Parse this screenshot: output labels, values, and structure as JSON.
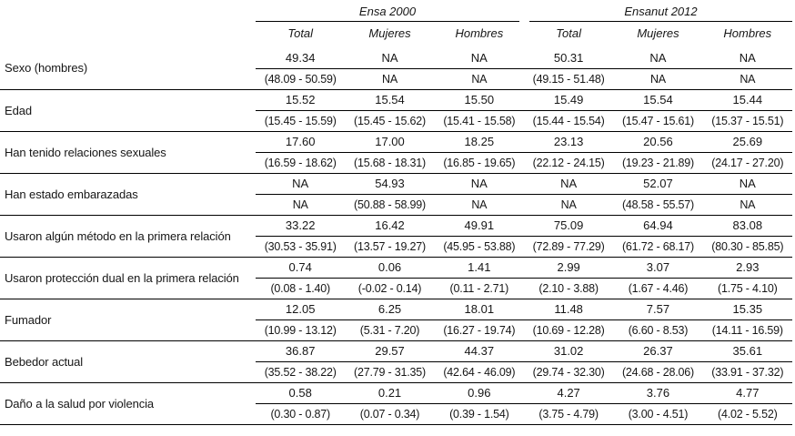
{
  "page": {
    "background_color": "#ffffff",
    "text_color": "#161616",
    "rule_color": "#000000"
  },
  "table": {
    "group_headers": [
      {
        "label": "Ensa 2000"
      },
      {
        "label": "Ensanut 2012"
      }
    ],
    "column_headers": [
      "Total",
      "Mujeres",
      "Hombres",
      "Total",
      "Mujeres",
      "Hombres"
    ],
    "rows": [
      {
        "label": "Sexo (hombres)",
        "values": [
          "49.34",
          "NA",
          "NA",
          "50.31",
          "NA",
          "NA"
        ],
        "ci": [
          "(48.09 - 50.59)",
          "NA",
          "NA",
          "(49.15 - 51.48)",
          "NA",
          "NA"
        ]
      },
      {
        "label": "Edad",
        "values": [
          "15.52",
          "15.54",
          "15.50",
          "15.49",
          "15.54",
          "15.44"
        ],
        "ci": [
          "(15.45 - 15.59)",
          "(15.45 - 15.62)",
          "(15.41 - 15.58)",
          "(15.44 - 15.54)",
          "(15.47 - 15.61)",
          "(15.37 - 15.51)"
        ]
      },
      {
        "label": "Han tenido relaciones sexuales",
        "values": [
          "17.60",
          "17.00",
          "18.25",
          "23.13",
          "20.56",
          "25.69"
        ],
        "ci": [
          "(16.59 - 18.62)",
          "(15.68 - 18.31)",
          "(16.85 - 19.65)",
          "(22.12 - 24.15)",
          "(19.23 - 21.89)",
          "(24.17 - 27.20)"
        ]
      },
      {
        "label": "Han estado embarazadas",
        "values": [
          "NA",
          "54.93",
          "NA",
          "NA",
          "52.07",
          "NA"
        ],
        "ci": [
          "NA",
          "(50.88 - 58.99)",
          "NA",
          "NA",
          "(48.58 - 55.57)",
          "NA"
        ]
      },
      {
        "label": "Usaron algún método en la primera relación",
        "values": [
          "33.22",
          "16.42",
          "49.91",
          "75.09",
          "64.94",
          "83.08"
        ],
        "ci": [
          "(30.53 - 35.91)",
          "(13.57 - 19.27)",
          "(45.95 - 53.88)",
          "(72.89 - 77.29)",
          "(61.72 - 68.17)",
          "(80.30 - 85.85)"
        ]
      },
      {
        "label": "Usaron protección dual en la primera relación",
        "values": [
          "0.74",
          "0.06",
          "1.41",
          "2.99",
          "3.07",
          "2.93"
        ],
        "ci": [
          "(0.08 - 1.40)",
          "(-0.02 - 0.14)",
          "(0.11 - 2.71)",
          "(2.10 - 3.88)",
          "(1.67 - 4.46)",
          "(1.75 - 4.10)"
        ]
      },
      {
        "label": "Fumador",
        "values": [
          "12.05",
          "6.25",
          "18.01",
          "11.48",
          "7.57",
          "15.35"
        ],
        "ci": [
          "(10.99 - 13.12)",
          "(5.31 - 7.20)",
          "(16.27 - 19.74)",
          "(10.69 - 12.28)",
          "(6.60 - 8.53)",
          "(14.11 - 16.59)"
        ]
      },
      {
        "label": "Bebedor actual",
        "values": [
          "36.87",
          "29.57",
          "44.37",
          "31.02",
          "26.37",
          "35.61"
        ],
        "ci": [
          "(35.52 - 38.22)",
          "(27.79 - 31.35)",
          "(42.64 - 46.09)",
          "(29.74 - 32.30)",
          "(24.68 - 28.06)",
          "(33.91 - 37.32)"
        ]
      },
      {
        "label": "Daño a la salud por violencia",
        "values": [
          "0.58",
          "0.21",
          "0.96",
          "4.27",
          "3.76",
          "4.77"
        ],
        "ci": [
          "(0.30 - 0.87)",
          "(0.07 - 0.34)",
          "(0.39 - 1.54)",
          "(3.75 - 4.79)",
          "(3.00 - 4.51)",
          "(4.02 - 5.52)"
        ]
      }
    ]
  }
}
